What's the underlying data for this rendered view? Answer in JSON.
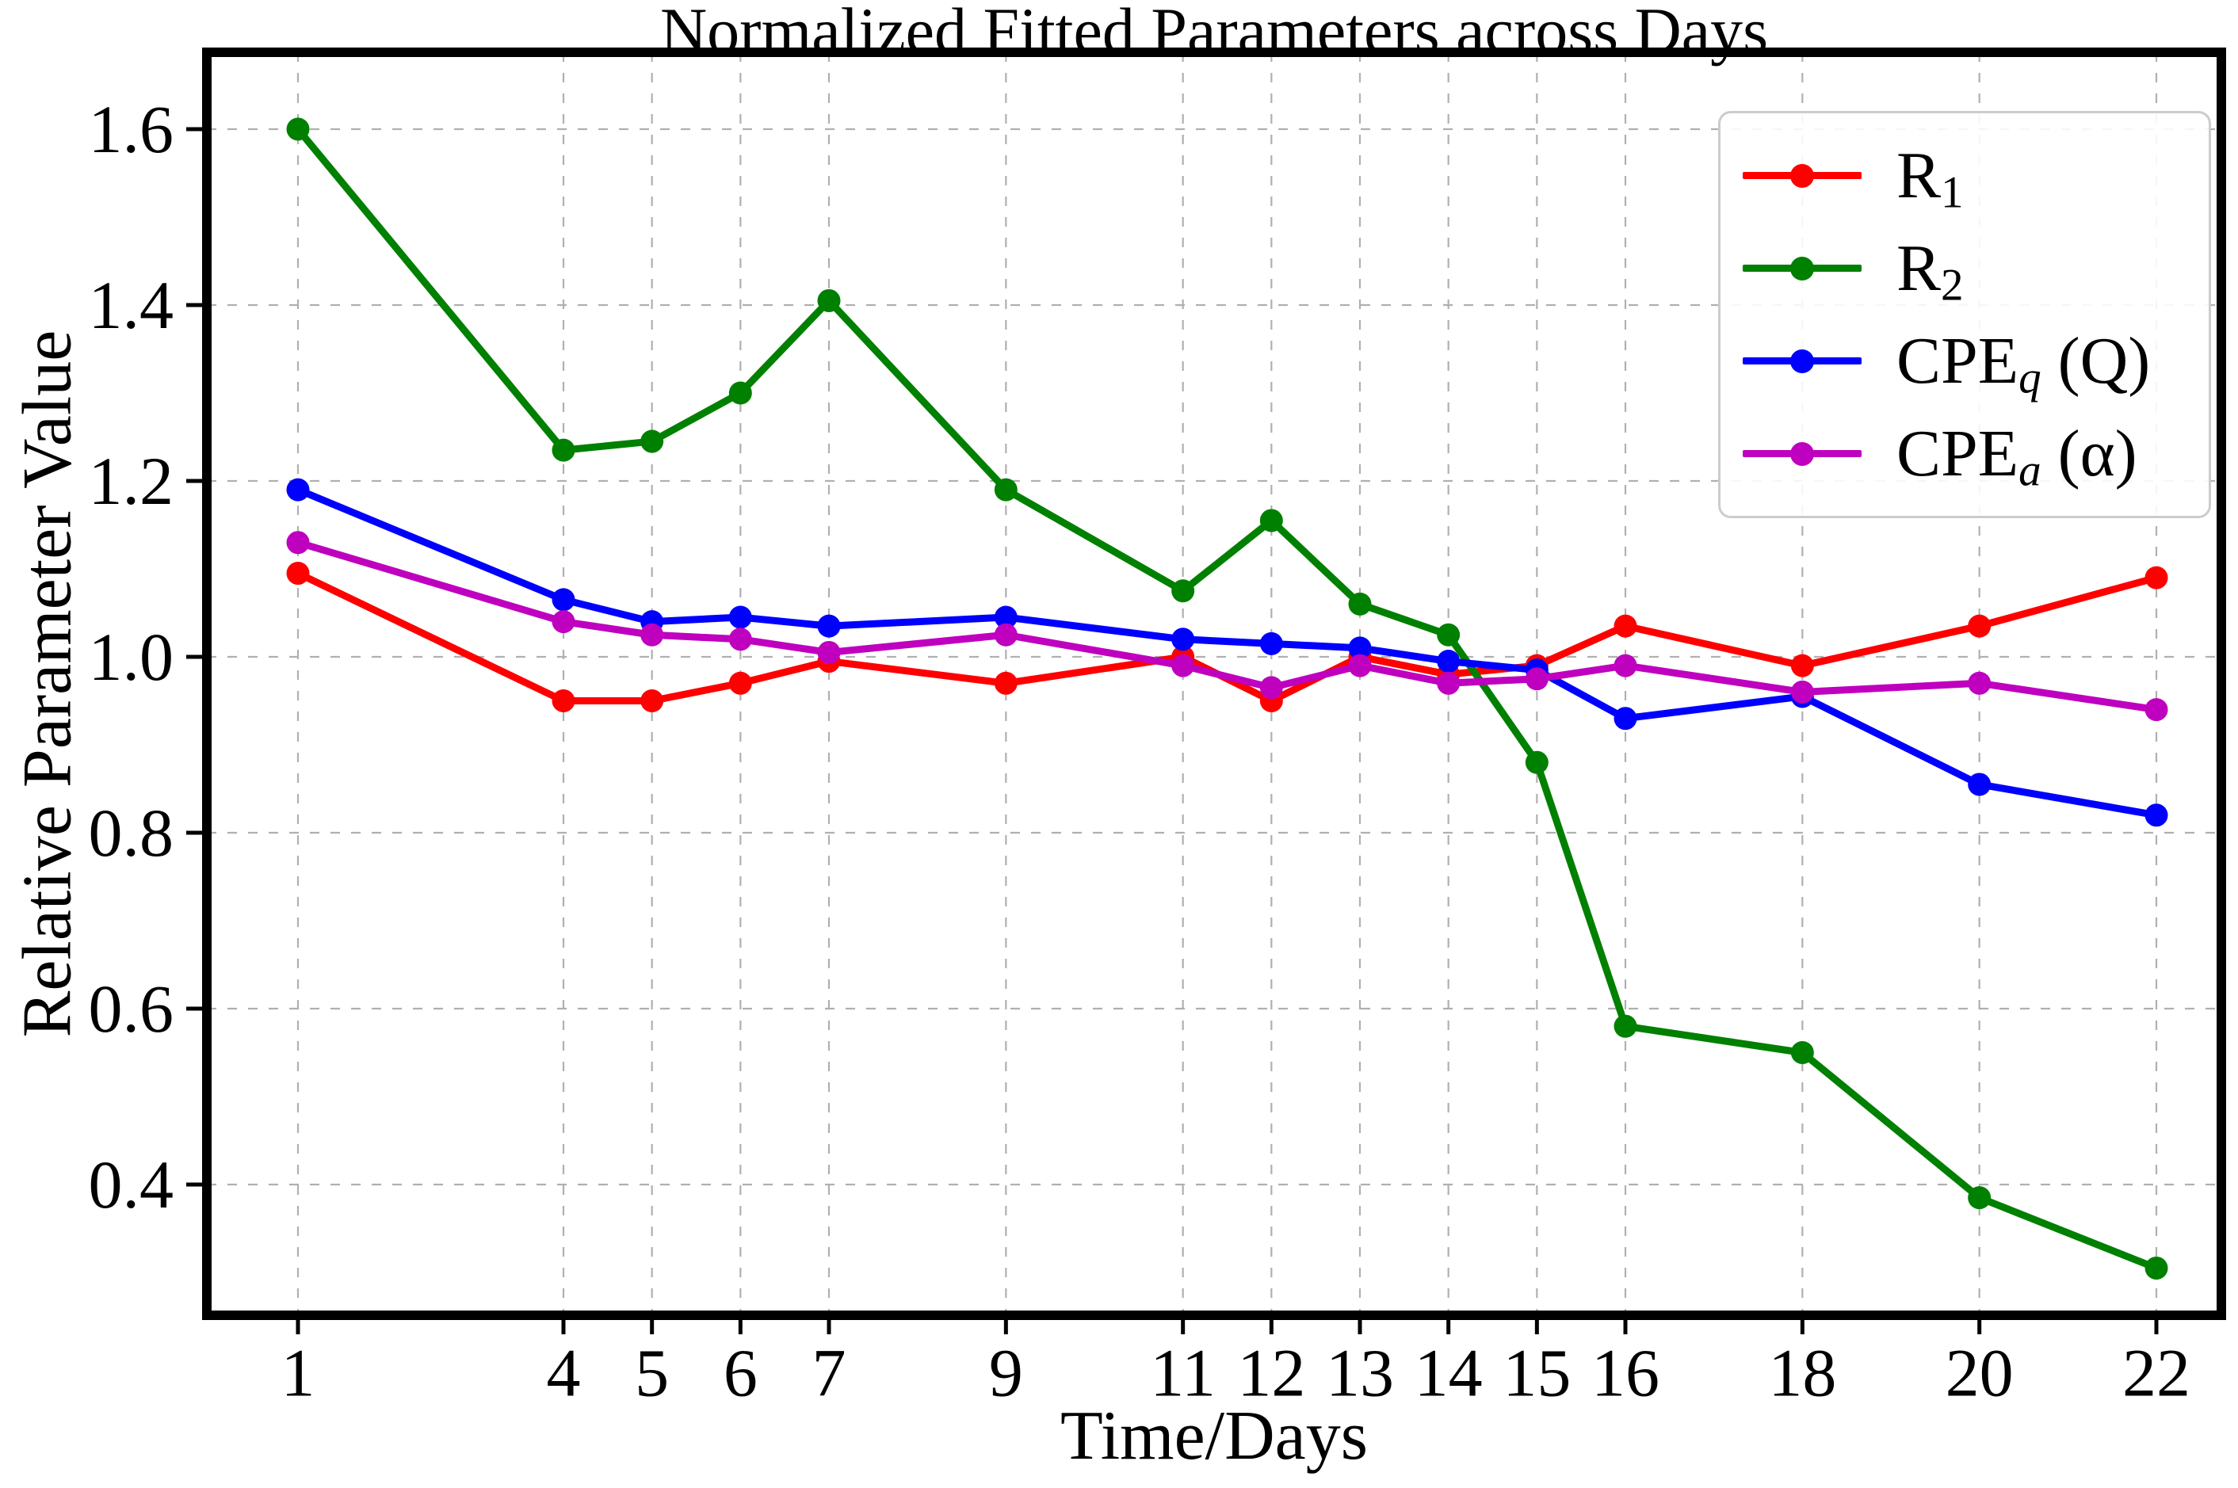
{
  "figure": {
    "background": "#ffffff",
    "frame_color": "#000000",
    "grid_color": "#b0b0b0"
  },
  "header": {
    "title": "Normalized Fitted Parameters across Days"
  },
  "axes": {
    "x": {
      "label": "Time/Days",
      "tick_labels": [
        "1",
        "4",
        "5",
        "6",
        "7",
        "9",
        "11",
        "12",
        "13",
        "14",
        "15",
        "16",
        "18",
        "20",
        "22"
      ]
    },
    "y": {
      "label": "Relative Parameter Value",
      "tick_labels": [
        "1.6",
        "1.4",
        "1.2",
        "1.0",
        "0.8",
        "0.6",
        "0.4"
      ]
    }
  },
  "legend": {
    "items": [
      {
        "base": "R",
        "sub": "1",
        "sub_italic": false,
        "suffix": "",
        "color": "#ff0000"
      },
      {
        "base": "R",
        "sub": "2",
        "sub_italic": false,
        "suffix": "",
        "color": "#008000"
      },
      {
        "base": "CPE",
        "sub": "q",
        "sub_italic": true,
        "suffix": " (Q)",
        "color": "#0000ff"
      },
      {
        "base": "CPE",
        "sub": "a",
        "sub_italic": true,
        "suffix": " (α)",
        "color": "#bf00bf"
      }
    ]
  },
  "chart_data": {
    "type": "line",
    "title": "Normalized Fitted Parameters across Days",
    "xlabel": "Time/Days",
    "ylabel": "Relative Parameter Value",
    "x": [
      1,
      4,
      5,
      6,
      7,
      9,
      11,
      12,
      13,
      14,
      15,
      16,
      18,
      20,
      22
    ],
    "x_tick_labels": [
      "1",
      "4",
      "5",
      "6",
      "7",
      "9",
      "11",
      "12",
      "13",
      "14",
      "15",
      "16",
      "18",
      "20",
      "22"
    ],
    "y_ticks": [
      1.6,
      1.4,
      1.2,
      1.0,
      0.8,
      0.6,
      0.4
    ],
    "xlim": [
      -0.05,
      22.75
    ],
    "ylim": [
      0.25,
      1.69
    ],
    "grid": true,
    "grid_style": "dashed",
    "legend_position": "upper right",
    "series": [
      {
        "name": "R1",
        "color": "#ff0000",
        "marker": "circle",
        "values": [
          1.095,
          0.95,
          0.95,
          0.97,
          0.995,
          0.97,
          1.0,
          0.95,
          1.0,
          0.98,
          0.99,
          1.035,
          0.99,
          1.035,
          1.09
        ]
      },
      {
        "name": "R2",
        "color": "#008000",
        "marker": "circle",
        "values": [
          1.6,
          1.235,
          1.245,
          1.3,
          1.405,
          1.19,
          1.075,
          1.155,
          1.06,
          1.025,
          0.88,
          0.58,
          0.55,
          0.385,
          0.305
        ]
      },
      {
        "name": "CPE_q (Q)",
        "color": "#0000ff",
        "marker": "circle",
        "values": [
          1.19,
          1.065,
          1.04,
          1.045,
          1.035,
          1.045,
          1.02,
          1.015,
          1.01,
          0.995,
          0.985,
          0.93,
          0.955,
          0.855,
          0.82
        ]
      },
      {
        "name": "CPE_a (alpha)",
        "color": "#bf00bf",
        "marker": "circle",
        "values": [
          1.13,
          1.04,
          1.025,
          1.02,
          1.005,
          1.025,
          0.99,
          0.965,
          0.99,
          0.97,
          0.975,
          0.99,
          0.96,
          0.97,
          0.94
        ]
      }
    ]
  }
}
